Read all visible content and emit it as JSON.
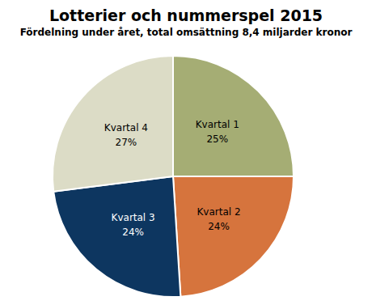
{
  "chart_data": {
    "type": "pie",
    "title": "Lotterier och nummerspel 2015",
    "subtitle": "Fördelning under året, total omsättning 8,4 miljarder kronor",
    "categories": [
      "Kvartal 1",
      "Kvartal 2",
      "Kvartal 3",
      "Kvartal 4"
    ],
    "values": [
      25,
      24,
      24,
      27
    ],
    "value_labels": [
      "25%",
      "24%",
      "24%",
      "27%"
    ],
    "colors": [
      "#a5ad74",
      "#d6743d",
      "#0d3660",
      "#dcdcc6"
    ],
    "data_labels": true
  }
}
